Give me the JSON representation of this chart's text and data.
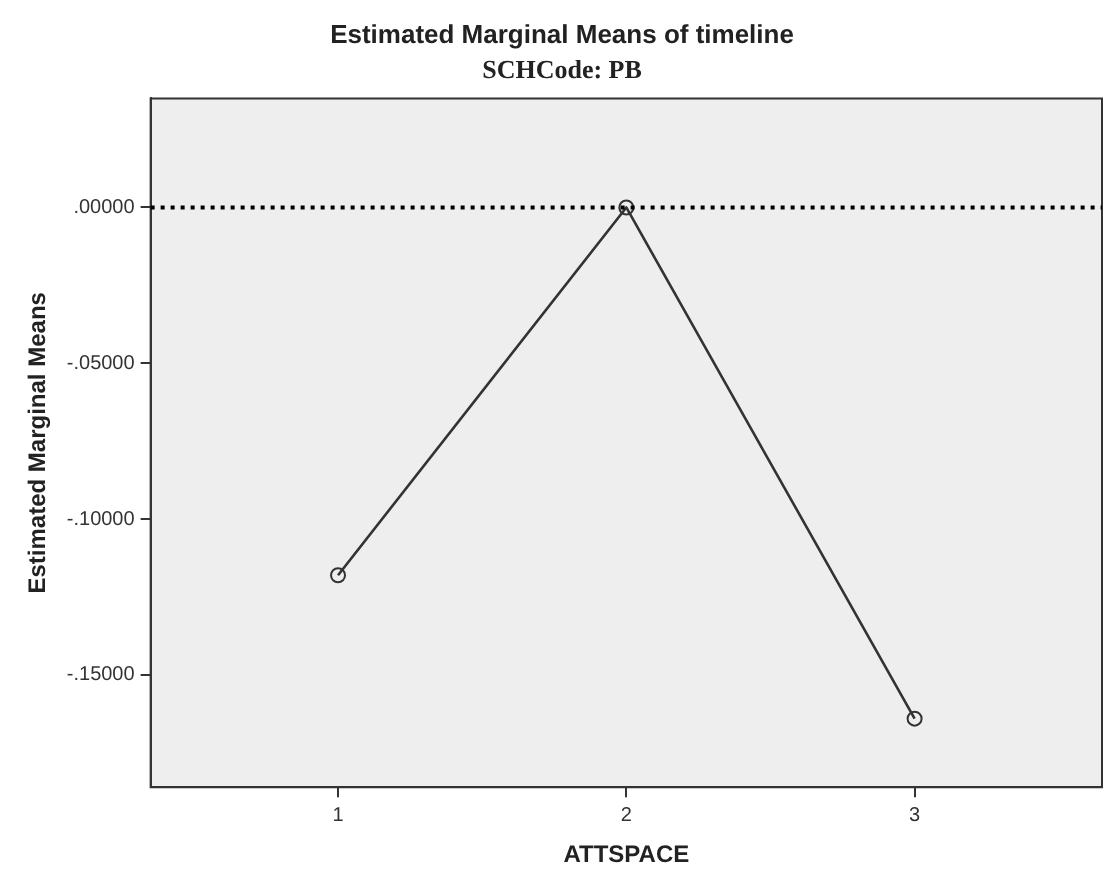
{
  "chart_data": {
    "type": "line",
    "title": "Estimated Marginal Means of timeline",
    "subtitle": "SCHCode: PB",
    "xlabel": "ATTSPACE",
    "ylabel": "Estimated Marginal Means",
    "x": [
      1,
      2,
      3
    ],
    "series": [
      {
        "color": "#333333",
        "values": [
          -0.118,
          0.0,
          -0.164
        ]
      }
    ],
    "xlim": [
      0.35,
      3.65
    ],
    "xticks": [
      1,
      2,
      3
    ],
    "ylim": [
      -0.186,
      0.035
    ],
    "yticks": [
      {
        "value": 0,
        "label": ".00000"
      },
      {
        "value": -0.05,
        "label": "-.05000"
      },
      {
        "value": -0.1,
        "label": "-.10000"
      },
      {
        "value": -0.15,
        "label": "-.15000"
      }
    ],
    "ref_lines": [
      {
        "axis": "y",
        "value": 0,
        "color": "#000000",
        "line_style": "dotted"
      }
    ],
    "grid": false,
    "legend": false,
    "marker": "circle",
    "line_style": "solid"
  }
}
